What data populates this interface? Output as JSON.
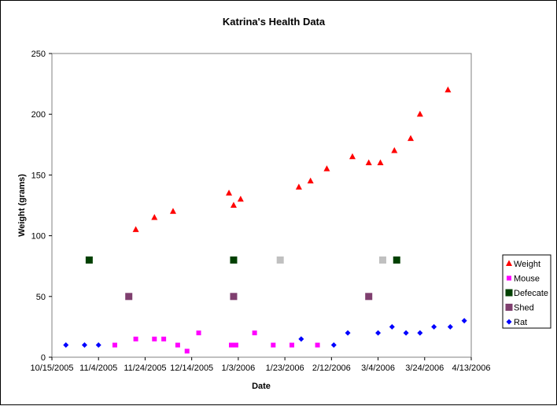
{
  "chart_data": {
    "type": "scatter",
    "title": "Katrina's Health Data",
    "xlabel": "Date",
    "ylabel": "Weight (grams)",
    "xlim": [
      "2005-10-15",
      "2006-04-13"
    ],
    "ylim": [
      0,
      250
    ],
    "x_ticks": [
      "10/15/2005",
      "11/4/2005",
      "11/24/2005",
      "12/14/2005",
      "1/3/2006",
      "1/23/2006",
      "2/12/2006",
      "3/4/2006",
      "3/24/2006",
      "4/13/2006"
    ],
    "y_ticks": [
      "0",
      "50",
      "100",
      "150",
      "200",
      "250"
    ],
    "grid": false,
    "legend_position": "right",
    "series": [
      {
        "name": "Weight",
        "marker": "triangle",
        "color": "#ff0000",
        "points": [
          [
            "2005-11-20",
            105
          ],
          [
            "2005-11-28",
            115
          ],
          [
            "2005-12-06",
            120
          ],
          [
            "2005-12-30",
            135
          ],
          [
            "2006-01-01",
            125
          ],
          [
            "2006-01-04",
            130
          ],
          [
            "2006-01-29",
            140
          ],
          [
            "2006-02-03",
            145
          ],
          [
            "2006-02-10",
            155
          ],
          [
            "2006-02-21",
            165
          ],
          [
            "2006-02-28",
            160
          ],
          [
            "2006-03-05",
            160
          ],
          [
            "2006-03-11",
            170
          ],
          [
            "2006-03-18",
            180
          ],
          [
            "2006-03-22",
            200
          ],
          [
            "2006-04-03",
            220
          ]
        ]
      },
      {
        "name": "Mouse",
        "marker": "square",
        "color": "#ff00ff",
        "points": [
          [
            "2005-11-11",
            10
          ],
          [
            "2005-11-20",
            15
          ],
          [
            "2005-11-28",
            15
          ],
          [
            "2005-12-02",
            15
          ],
          [
            "2005-12-08",
            10
          ],
          [
            "2005-12-12",
            5
          ],
          [
            "2005-12-17",
            20
          ],
          [
            "2005-12-31",
            10
          ],
          [
            "2006-01-02",
            10
          ],
          [
            "2006-01-10",
            20
          ],
          [
            "2006-01-18",
            10
          ],
          [
            "2006-01-26",
            10
          ],
          [
            "2006-02-06",
            10
          ]
        ]
      },
      {
        "name": "Defecate",
        "marker": "square",
        "color": "#004000",
        "points": [
          [
            "2005-10-31",
            80
          ],
          [
            "2006-01-01",
            80
          ],
          [
            "2006-03-12",
            80
          ]
        ]
      },
      {
        "name": "Shed",
        "marker": "square",
        "color": "#7f3f6f",
        "points": [
          [
            "2005-11-17",
            50
          ],
          [
            "2006-01-01",
            50
          ],
          [
            "2006-02-28",
            50
          ]
        ]
      },
      {
        "name": "Rat",
        "marker": "diamond",
        "color": "#0000ff",
        "points": [
          [
            "2005-10-21",
            10
          ],
          [
            "2005-10-29",
            10
          ],
          [
            "2005-11-04",
            10
          ],
          [
            "2006-01-30",
            15
          ],
          [
            "2006-02-13",
            10
          ],
          [
            "2006-02-19",
            20
          ],
          [
            "2006-03-04",
            20
          ],
          [
            "2006-03-10",
            25
          ],
          [
            "2006-03-16",
            20
          ],
          [
            "2006-03-22",
            20
          ],
          [
            "2006-03-28",
            25
          ],
          [
            "2006-04-04",
            25
          ],
          [
            "2006-04-10",
            30
          ]
        ]
      }
    ],
    "extra_series": [
      {
        "marker": "square",
        "color": "#c0c0c0",
        "points": [
          [
            "2006-01-21",
            80
          ],
          [
            "2006-03-06",
            80
          ]
        ]
      }
    ]
  }
}
